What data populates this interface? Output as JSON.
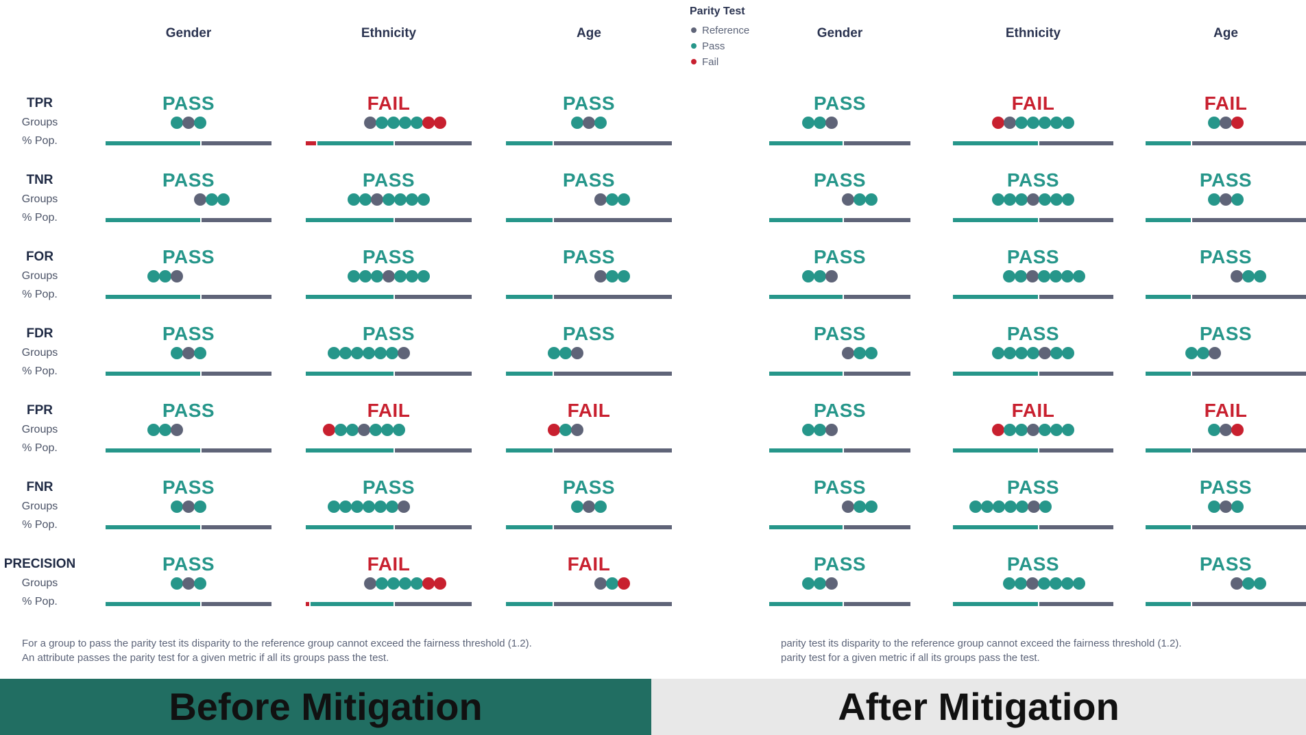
{
  "colors": {
    "pass": "#26968a",
    "fail": "#c8202f",
    "reference": "#5f6478",
    "bar_green": "#26968a",
    "bar_gray": "#5f6478",
    "banner_before": "#216e62",
    "banner_after": "#e8e8e8"
  },
  "legend": {
    "title": "Parity Test",
    "items": [
      {
        "label": "Reference",
        "color": "#5f6478"
      },
      {
        "label": "Pass",
        "color": "#26968a"
      },
      {
        "label": "Fail",
        "color": "#c8202f"
      }
    ]
  },
  "row_labels": {
    "groups": "Groups",
    "pop": "% Pop."
  },
  "chart_data": [
    {
      "type": "table",
      "title": "Before Mitigation",
      "attributes": [
        "Gender",
        "Ethnicity",
        "Age"
      ],
      "metrics": [
        "TPR",
        "TNR",
        "FOR",
        "FDR",
        "FPR",
        "FNR",
        "PRECISION"
      ],
      "results": [
        [
          "PASS",
          "FAIL",
          "PASS"
        ],
        [
          "PASS",
          "PASS",
          "PASS"
        ],
        [
          "PASS",
          "PASS",
          "PASS"
        ],
        [
          "PASS",
          "PASS",
          "PASS"
        ],
        [
          "PASS",
          "FAIL",
          "FAIL"
        ],
        [
          "PASS",
          "PASS",
          "PASS"
        ],
        [
          "PASS",
          "FAIL",
          "FAIL"
        ]
      ],
      "groups": [
        [
          [
            "p",
            "r",
            "p"
          ],
          [
            "r",
            "p",
            "p",
            "p",
            "p",
            "f",
            "f"
          ],
          [
            "p",
            "r",
            "p"
          ]
        ],
        [
          [
            "r",
            "p",
            "p"
          ],
          [
            "p",
            "p",
            "r",
            "p",
            "p",
            "p",
            "p"
          ],
          [
            "r",
            "p",
            "p"
          ]
        ],
        [
          [
            "p",
            "p",
            "r"
          ],
          [
            "p",
            "p",
            "p",
            "r",
            "p",
            "p",
            "p"
          ],
          [
            "r",
            "p",
            "p"
          ]
        ],
        [
          [
            "p",
            "r",
            "p"
          ],
          [
            "p",
            "p",
            "p",
            "p",
            "p",
            "p",
            "r"
          ],
          [
            "p",
            "p",
            "r"
          ]
        ],
        [
          [
            "p",
            "p",
            "r"
          ],
          [
            "f",
            "p",
            "p",
            "r",
            "p",
            "p",
            "p"
          ],
          [
            "f",
            "p",
            "r"
          ]
        ],
        [
          [
            "p",
            "r",
            "p"
          ],
          [
            "p",
            "p",
            "p",
            "p",
            "p",
            "p",
            "r"
          ],
          [
            "p",
            "r",
            "p"
          ]
        ],
        [
          [
            "p",
            "r",
            "p"
          ],
          [
            "r",
            "p",
            "p",
            "p",
            "p",
            "f",
            "f"
          ],
          [
            "r",
            "p",
            "f"
          ]
        ]
      ],
      "group_offset": [
        [
          0,
          0.1,
          0
        ],
        [
          0.14,
          0,
          0.14
        ],
        [
          -0.14,
          0,
          0.14
        ],
        [
          0,
          -0.12,
          -0.14
        ],
        [
          -0.14,
          -0.15,
          -0.14
        ],
        [
          0,
          -0.12,
          0
        ],
        [
          0,
          0.1,
          0.14
        ]
      ],
      "pop_split": [
        [
          0.57,
          {
            "fail": 0.06,
            "pass": 0.53
          },
          0.28
        ],
        [
          0.57,
          0.53,
          0.28
        ],
        [
          0.57,
          0.53,
          0.28
        ],
        [
          0.57,
          0.53,
          0.28
        ],
        [
          0.57,
          0.53,
          0.28
        ],
        [
          0.57,
          0.53,
          0.28
        ],
        [
          0.57,
          {
            "fail": 0.02,
            "pass": 0.53
          },
          0.28
        ]
      ]
    },
    {
      "type": "table",
      "title": "After Mitigation",
      "attributes": [
        "Gender",
        "Ethnicity",
        "Age"
      ],
      "metrics": [
        "TPR",
        "TNR",
        "FOR",
        "FDR",
        "FPR",
        "FNR",
        "PRECISION"
      ],
      "results": [
        [
          "PASS",
          "FAIL",
          "FAIL"
        ],
        [
          "PASS",
          "PASS",
          "PASS"
        ],
        [
          "PASS",
          "PASS",
          "PASS"
        ],
        [
          "PASS",
          "PASS",
          "PASS"
        ],
        [
          "PASS",
          "FAIL",
          "FAIL"
        ],
        [
          "PASS",
          "PASS",
          "PASS"
        ],
        [
          "PASS",
          "PASS",
          "PASS"
        ]
      ],
      "groups": [
        [
          [
            "p",
            "p",
            "r"
          ],
          [
            "f",
            "r",
            "p",
            "p",
            "p",
            "p",
            "p"
          ],
          [
            "p",
            "r",
            "f"
          ]
        ],
        [
          [
            "r",
            "p",
            "p"
          ],
          [
            "p",
            "p",
            "p",
            "r",
            "p",
            "p",
            "p"
          ],
          [
            "p",
            "r",
            "p"
          ]
        ],
        [
          [
            "p",
            "p",
            "r"
          ],
          [
            "p",
            "p",
            "r",
            "p",
            "p",
            "p",
            "p"
          ],
          [
            "r",
            "p",
            "p"
          ]
        ],
        [
          [
            "r",
            "p",
            "p"
          ],
          [
            "p",
            "p",
            "p",
            "p",
            "r",
            "p",
            "p"
          ],
          [
            "p",
            "p",
            "r"
          ]
        ],
        [
          [
            "p",
            "p",
            "r"
          ],
          [
            "f",
            "p",
            "p",
            "r",
            "p",
            "p",
            "p"
          ],
          [
            "p",
            "r",
            "f"
          ]
        ],
        [
          [
            "r",
            "p",
            "p"
          ],
          [
            "p",
            "p",
            "p",
            "p",
            "p",
            "r",
            "p"
          ],
          [
            "p",
            "r",
            "p"
          ]
        ],
        [
          [
            "p",
            "p",
            "r"
          ],
          [
            "p",
            "p",
            "r",
            "p",
            "p",
            "p",
            "p"
          ],
          [
            "r",
            "p",
            "p"
          ]
        ]
      ],
      "group_offset": [
        [
          -0.14,
          0,
          0
        ],
        [
          0.14,
          0,
          0
        ],
        [
          -0.14,
          0.07,
          0.14
        ],
        [
          0.14,
          0,
          -0.14
        ],
        [
          -0.14,
          0,
          0
        ],
        [
          0.14,
          -0.14,
          0
        ],
        [
          -0.14,
          0.07,
          0.14
        ]
      ],
      "pop_split": [
        [
          0.52,
          0.53,
          0.28
        ],
        [
          0.52,
          0.53,
          0.28
        ],
        [
          0.52,
          0.53,
          0.28
        ],
        [
          0.52,
          0.53,
          0.28
        ],
        [
          0.52,
          0.53,
          0.28
        ],
        [
          0.52,
          0.53,
          0.28
        ],
        [
          0.52,
          0.53,
          0.28
        ]
      ]
    }
  ],
  "footnote_left": [
    "For a group to pass the parity test its disparity to the reference group cannot exceed the fairness threshold (1.2).",
    "An attribute passes the parity test for a given metric if all its groups pass the test."
  ],
  "footnote_right": [
    "parity test its disparity to the reference group cannot exceed the fairness threshold (1.2).",
    "parity test for a given metric if all its groups pass the test."
  ],
  "banner": {
    "before": "Before Mitigation",
    "after": "After Mitigation"
  }
}
